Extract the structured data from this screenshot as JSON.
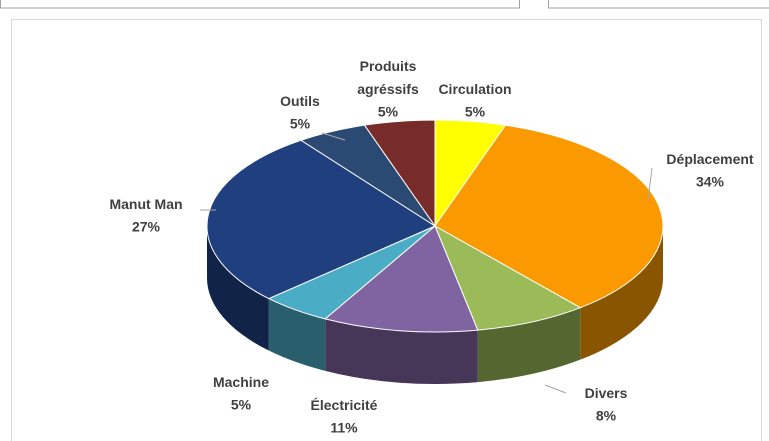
{
  "chart_data": {
    "type": "pie3d",
    "categories": [
      "Circulation",
      "Déplacement",
      "Divers",
      "Électricité",
      "Machine",
      "Manut Man",
      "Outils",
      "Produits\nagréssifs"
    ],
    "values": [
      5,
      34,
      8,
      11,
      5,
      27,
      5,
      5
    ],
    "value_labels": [
      "5%",
      "34%",
      "8%",
      "11%",
      "5%",
      "27%",
      "5%",
      "5%"
    ],
    "colors": [
      "#ffff00",
      "#fb9a00",
      "#9bbb59",
      "#8064a2",
      "#4bacc6",
      "#1f3f7f",
      "#2a4a73",
      "#772c2a"
    ]
  }
}
